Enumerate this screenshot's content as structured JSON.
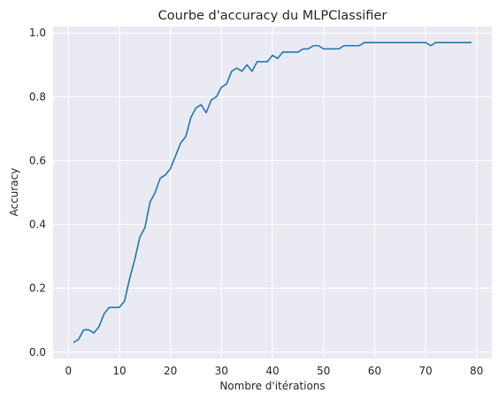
{
  "chart_data": {
    "type": "line",
    "title": "Courbe d'accuracy du MLPClassifier",
    "xlabel": "Nombre d'itérations",
    "ylabel": "Accuracy",
    "xlim": [
      -3,
      83
    ],
    "ylim": [
      -0.02,
      1.02
    ],
    "xticks": [
      0,
      10,
      20,
      30,
      40,
      50,
      60,
      70,
      80
    ],
    "xtick_labels": [
      "0",
      "10",
      "20",
      "30",
      "40",
      "50",
      "60",
      "70",
      "80"
    ],
    "yticks": [
      0.0,
      0.2,
      0.4,
      0.6,
      0.8,
      1.0
    ],
    "ytick_labels": [
      "0.0",
      "0.2",
      "0.4",
      "0.6",
      "0.8",
      "1.0"
    ],
    "grid": true,
    "colors": {
      "plot_background": "#eaeaf2",
      "grid": "#ffffff",
      "line": "#1f77b4",
      "text": "#262626"
    },
    "series": [
      {
        "x": [
          1,
          2,
          3,
          4,
          5,
          6,
          7,
          8,
          9,
          10,
          11,
          12,
          13,
          14,
          15,
          16,
          17,
          18,
          19,
          20,
          21,
          22,
          23,
          24,
          25,
          26,
          27,
          28,
          29,
          30,
          31,
          32,
          33,
          34,
          35,
          36,
          37,
          38,
          39,
          40,
          41,
          42,
          43,
          44,
          45,
          46,
          47,
          48,
          49,
          50,
          51,
          52,
          53,
          54,
          55,
          56,
          57,
          58,
          59,
          60,
          61,
          62,
          63,
          64,
          65,
          66,
          67,
          68,
          69,
          70,
          71,
          72,
          73,
          74,
          75,
          76,
          77,
          78,
          79
        ],
        "values": [
          0.03,
          0.04,
          0.07,
          0.07,
          0.06,
          0.08,
          0.12,
          0.14,
          0.14,
          0.14,
          0.16,
          0.23,
          0.29,
          0.36,
          0.39,
          0.47,
          0.5,
          0.545,
          0.555,
          0.575,
          0.615,
          0.655,
          0.675,
          0.735,
          0.765,
          0.775,
          0.75,
          0.79,
          0.8,
          0.83,
          0.84,
          0.88,
          0.89,
          0.88,
          0.9,
          0.88,
          0.91,
          0.91,
          0.91,
          0.93,
          0.92,
          0.94,
          0.94,
          0.94,
          0.94,
          0.95,
          0.95,
          0.96,
          0.96,
          0.95,
          0.95,
          0.95,
          0.95,
          0.96,
          0.96,
          0.96,
          0.96,
          0.97,
          0.97,
          0.97,
          0.97,
          0.97,
          0.97,
          0.97,
          0.97,
          0.97,
          0.97,
          0.97,
          0.97,
          0.97,
          0.96,
          0.97,
          0.97,
          0.97,
          0.97,
          0.97,
          0.97,
          0.97,
          0.97
        ]
      }
    ]
  }
}
